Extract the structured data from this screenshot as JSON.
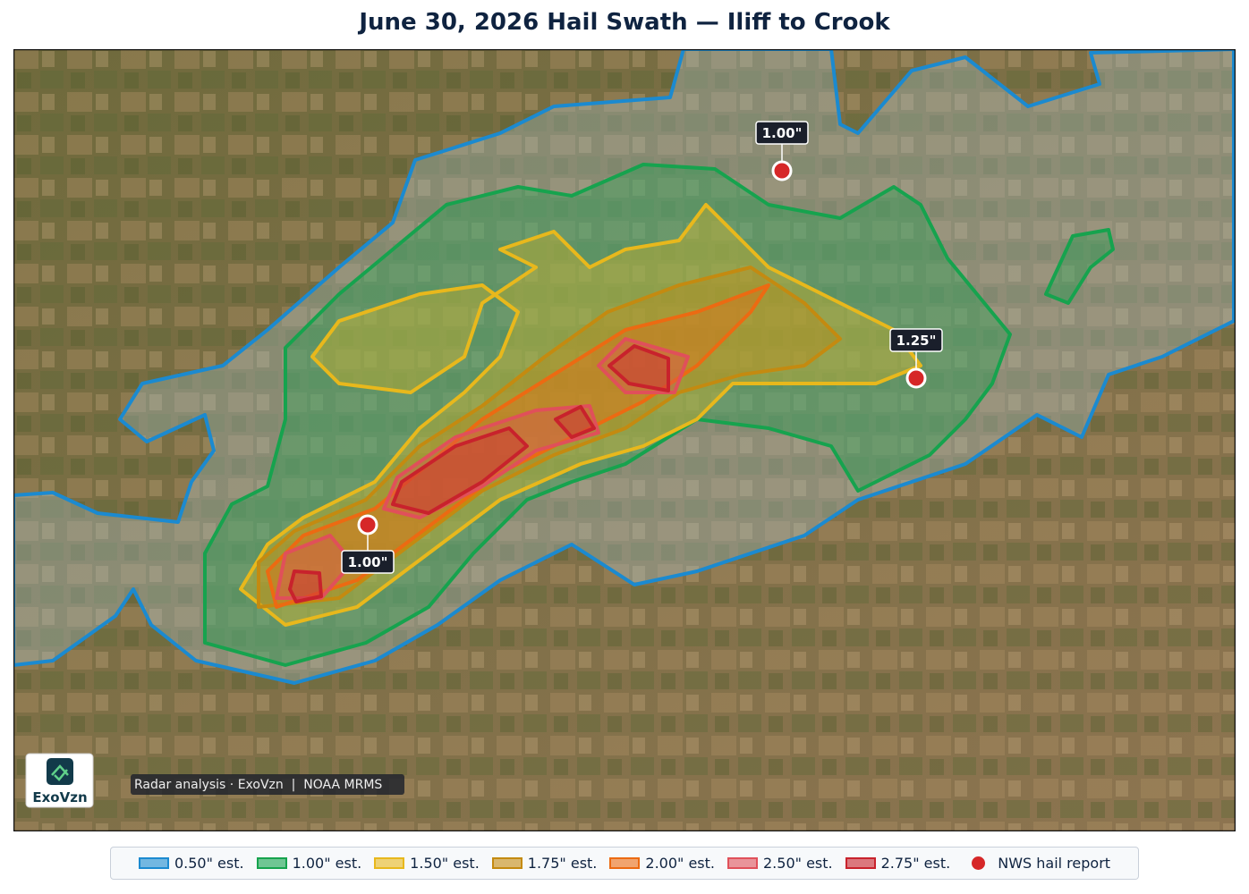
{
  "title": "June 30, 2026 Hail Swath — Iliff to Crook",
  "map": {
    "attribution": "Radar analysis · ExoVzn  |  NOAA MRMS",
    "logo": "ExoVzn",
    "reports": [
      {
        "label": "1.00\""
      },
      {
        "label": "1.25\""
      },
      {
        "label": "1.00\""
      }
    ]
  },
  "legend": [
    {
      "label": "0.50\" est.",
      "color": "#1b8ad0"
    },
    {
      "label": "1.00\" est.",
      "color": "#16a34e"
    },
    {
      "label": "1.50\" est.",
      "color": "#e8b81c"
    },
    {
      "label": "1.75\" est.",
      "color": "#c48a10"
    },
    {
      "label": "2.00\" est.",
      "color": "#ec6a12"
    },
    {
      "label": "2.50\" est.",
      "color": "#e0505a"
    },
    {
      "label": "2.75\" est.",
      "color": "#c8222c"
    },
    {
      "label": "NWS hail report",
      "color": "#d62728"
    }
  ]
}
